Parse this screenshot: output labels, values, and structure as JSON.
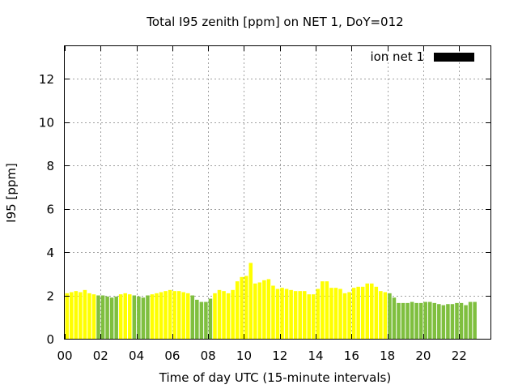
{
  "chart_data": {
    "type": "bar",
    "title": "Total I95 zenith [ppm] on NET 1, DoY=012",
    "xlabel": "Time of day UTC (15-minute intervals)",
    "ylabel": "I95 [ppm]",
    "xlim": [
      0,
      23.75
    ],
    "ylim": [
      0,
      13.5
    ],
    "x_ticks": [
      "00",
      "02",
      "04",
      "06",
      "08",
      "10",
      "12",
      "14",
      "16",
      "18",
      "20",
      "22"
    ],
    "y_ticks": [
      "0",
      "2",
      "4",
      "6",
      "8",
      "10",
      "12"
    ],
    "grid": true,
    "legend": {
      "placement": "top-right",
      "entries": [
        {
          "label": "ion net 1",
          "color": "#000000"
        }
      ]
    },
    "colors": {
      "yellow": "#ffff00",
      "green": "#7fbf3f",
      "legend_swatch": "#000000"
    },
    "bin_hours": 0.25,
    "series": [
      {
        "values": [
          2.1,
          2.15,
          2.2,
          2.15,
          2.25,
          2.1,
          2.05,
          2.0,
          2.0,
          1.95,
          1.9,
          1.95,
          2.05,
          2.1,
          2.05,
          2.0,
          1.95,
          1.9,
          2.0,
          2.05,
          2.1,
          2.15,
          2.2,
          2.25,
          2.2,
          2.2,
          2.15,
          2.1,
          2.0,
          1.8,
          1.7,
          1.7,
          1.85,
          2.1,
          2.25,
          2.2,
          2.1,
          2.25,
          2.65,
          2.85,
          2.9,
          3.5,
          2.55,
          2.6,
          2.7,
          2.75,
          2.45,
          2.3,
          2.35,
          2.3,
          2.25,
          2.2,
          2.2,
          2.2,
          2.05,
          2.05,
          2.3,
          2.65,
          2.65,
          2.35,
          2.35,
          2.3,
          2.1,
          2.15,
          2.35,
          2.4,
          2.4,
          2.55,
          2.55,
          2.4,
          2.2,
          2.15,
          2.1,
          1.9,
          1.65,
          1.65,
          1.65,
          1.7,
          1.65,
          1.65,
          1.7,
          1.7,
          1.65,
          1.6,
          1.55,
          1.6,
          1.6,
          1.65,
          1.65,
          1.55,
          1.7,
          1.7
        ],
        "colors": [
          "yellow",
          "yellow",
          "yellow",
          "yellow",
          "yellow",
          "yellow",
          "yellow",
          "green",
          "green",
          "green",
          "green",
          "green",
          "yellow",
          "yellow",
          "yellow",
          "green",
          "green",
          "green",
          "green",
          "yellow",
          "yellow",
          "yellow",
          "yellow",
          "yellow",
          "yellow",
          "yellow",
          "yellow",
          "yellow",
          "green",
          "green",
          "green",
          "green",
          "green",
          "yellow",
          "yellow",
          "yellow",
          "yellow",
          "yellow",
          "yellow",
          "yellow",
          "yellow",
          "yellow",
          "yellow",
          "yellow",
          "yellow",
          "yellow",
          "yellow",
          "yellow",
          "yellow",
          "yellow",
          "yellow",
          "yellow",
          "yellow",
          "yellow",
          "yellow",
          "yellow",
          "yellow",
          "yellow",
          "yellow",
          "yellow",
          "yellow",
          "yellow",
          "yellow",
          "yellow",
          "yellow",
          "yellow",
          "yellow",
          "yellow",
          "yellow",
          "yellow",
          "yellow",
          "yellow",
          "green",
          "green",
          "green",
          "green",
          "green",
          "green",
          "green",
          "green",
          "green",
          "green",
          "green",
          "green",
          "green",
          "green",
          "green",
          "green",
          "green",
          "green",
          "green",
          "green"
        ]
      }
    ]
  }
}
